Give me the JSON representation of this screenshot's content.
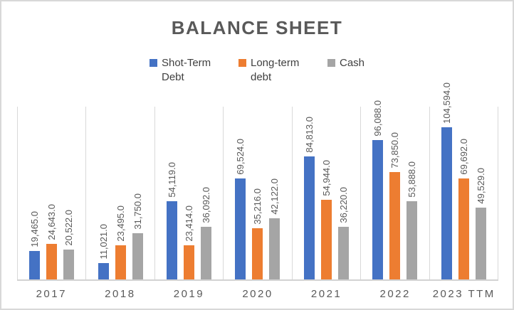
{
  "chart_data": {
    "type": "bar",
    "title": "BALANCE SHEET",
    "categories": [
      "2017",
      "2018",
      "2019",
      "2020",
      "2021",
      "2022",
      "2023 TTM"
    ],
    "series": [
      {
        "key": "shot-term-debt",
        "name": "Shot-Term Debt",
        "color": "#4472C4",
        "values": [
          19465,
          11021,
          54119,
          69524,
          84813,
          96088,
          104594
        ],
        "labels": [
          "19,465.0",
          "11,021.0",
          "54,119.0",
          "69,524.0",
          "84,813.0",
          "96,088.0",
          "104,594.0"
        ]
      },
      {
        "key": "long-term-debt",
        "name": "Long-term debt",
        "color": "#ED7D31",
        "values": [
          24643,
          23495,
          23414,
          35216,
          54944,
          73850,
          69692
        ],
        "labels": [
          "24,643.0",
          "23,495.0",
          "23,414.0",
          "35,216.0",
          "54,944.0",
          "73,850.0",
          "69,692.0"
        ]
      },
      {
        "key": "cash",
        "name": "Cash",
        "color": "#A5A5A5",
        "values": [
          20522,
          31750,
          36092,
          42122,
          36220,
          53888,
          49529
        ],
        "labels": [
          "20,522.0",
          "31,750.0",
          "36,092.0",
          "42,122.0",
          "36,220.0",
          "53,888.0",
          "49,529.0"
        ]
      }
    ],
    "xlabel": "",
    "ylabel": "",
    "ylim": [
      0,
      120000
    ],
    "grid": "vertical-category-separators",
    "legend_position": "top",
    "data_label_format": "#,##0.0",
    "data_label_rotation": 90,
    "colors": {
      "title_text": "#595959",
      "label_text": "#595959",
      "legend_text": "#404040",
      "gridline": "#D9D9D9",
      "axis_line": "#D2D2D2",
      "background": "#FFFFFF",
      "border": "#D8D8D8"
    }
  }
}
